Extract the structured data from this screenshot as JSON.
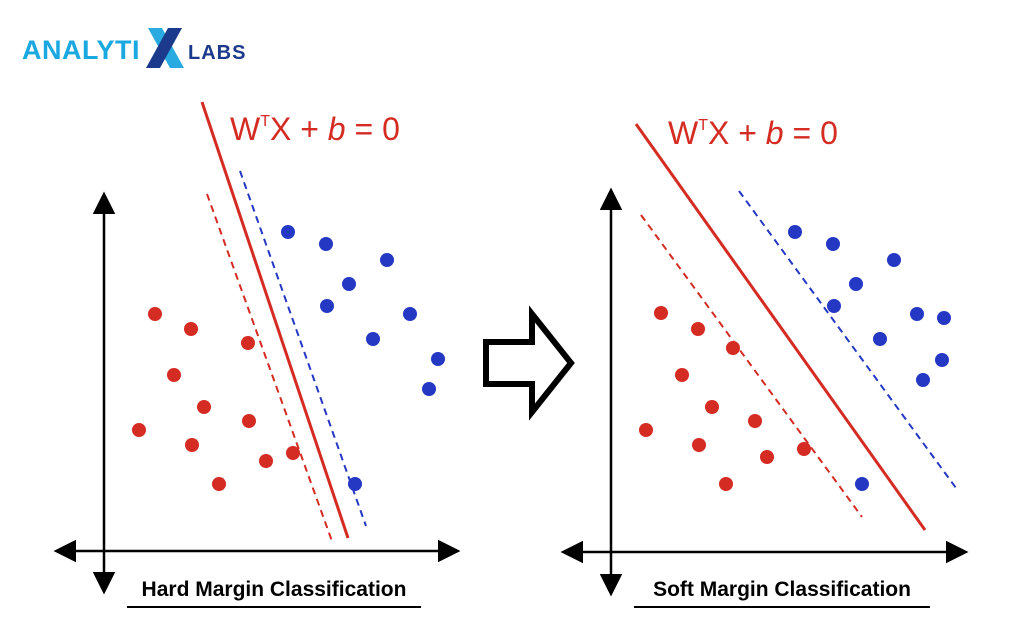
{
  "logo": {
    "left_text": "ANALYTI",
    "mark": "X",
    "right_text": "LABS",
    "colors": {
      "left": "#1aa8e0",
      "mark_light": "#29abe2",
      "mark_dark": "#1b3a8c",
      "right": "#1b3a8c"
    }
  },
  "panels": [
    {
      "id": "hard",
      "equation": {
        "w": "W",
        "sup": "T",
        "rest": "X + ",
        "b": "b",
        "tail": " = 0"
      },
      "caption": "Hard Margin Classification"
    },
    {
      "id": "soft",
      "equation": {
        "w": "W",
        "sup": "T",
        "rest": "X + ",
        "b": "b",
        "tail": " = 0"
      },
      "caption": "Soft Margin Classification"
    }
  ],
  "arrow_icon": "right-arrow-outline-icon",
  "colors": {
    "class_a": "#d42b22",
    "class_b": "#2438c4",
    "hyperplane": "#d42b22",
    "margin_a": "#d42b22",
    "margin_b": "#2438c4",
    "axes": "#000000"
  }
}
